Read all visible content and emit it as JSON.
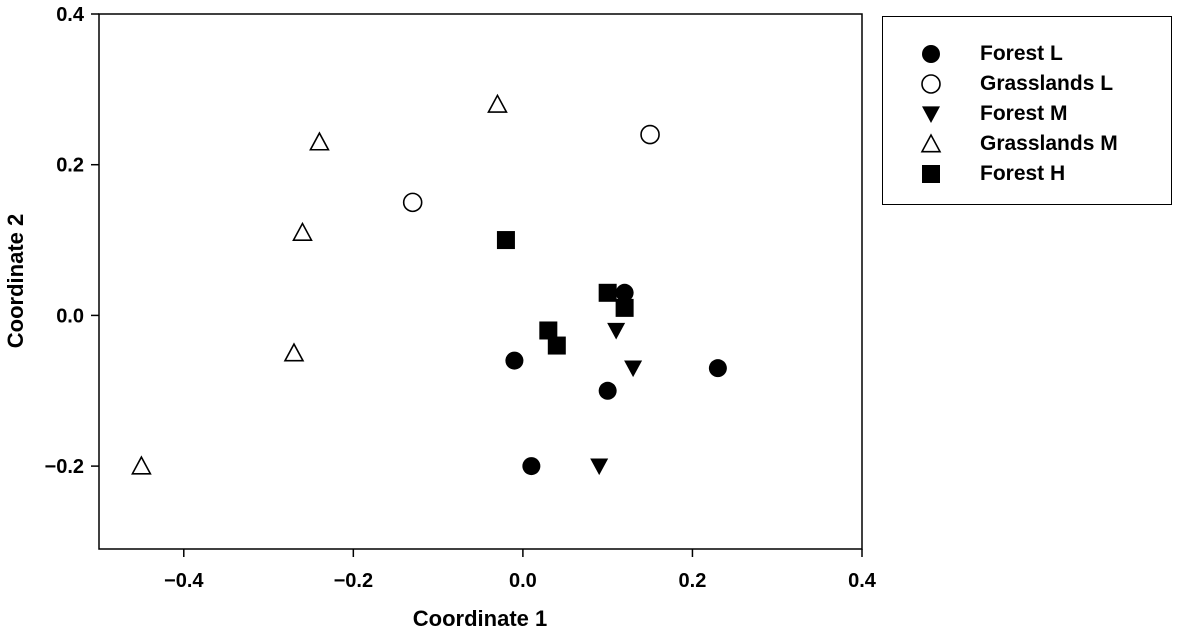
{
  "chart_data": {
    "type": "scatter",
    "xlabel": "Coordinate 1",
    "ylabel": "Coordinate 2",
    "xlim": [
      -0.5,
      0.4
    ],
    "ylim": [
      -0.31,
      0.4
    ],
    "xticks": [
      -0.4,
      -0.2,
      0.0,
      0.2,
      0.4
    ],
    "xtick_labels": [
      "−0.4",
      "−0.2",
      "0.0",
      "0.2",
      "0.4"
    ],
    "yticks": [
      -0.2,
      0.0,
      0.2,
      0.4
    ],
    "ytick_labels": [
      "−0.2",
      "0.0",
      "0.2",
      "0.4"
    ],
    "grid": false,
    "legend_position": "outside-right-top",
    "series": [
      {
        "name": "Forest L",
        "marker": "circle-filled",
        "x": [
          -0.01,
          0.1,
          0.12,
          0.23,
          0.01
        ],
        "y": [
          -0.06,
          -0.1,
          0.03,
          -0.07,
          -0.2
        ]
      },
      {
        "name": "Grasslands L",
        "marker": "circle-open",
        "x": [
          -0.13,
          0.15
        ],
        "y": [
          0.15,
          0.24
        ]
      },
      {
        "name": "Forest M",
        "marker": "triangle-down-filled",
        "x": [
          0.11,
          0.13,
          0.09,
          0.12
        ],
        "y": [
          -0.02,
          -0.07,
          -0.2,
          0.02
        ]
      },
      {
        "name": "Grasslands M",
        "marker": "triangle-up-open",
        "x": [
          -0.45,
          -0.27,
          -0.26,
          -0.24,
          -0.03
        ],
        "y": [
          -0.2,
          -0.05,
          0.11,
          0.23,
          0.28
        ]
      },
      {
        "name": "Forest H",
        "marker": "square-filled",
        "x": [
          -0.02,
          0.1,
          0.12,
          0.03,
          0.04
        ],
        "y": [
          0.1,
          0.03,
          0.01,
          -0.02,
          -0.04
        ]
      }
    ]
  }
}
